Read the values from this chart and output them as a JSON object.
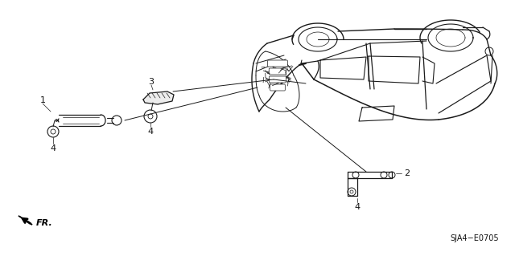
{
  "bg_color": "#ffffff",
  "fig_width": 6.4,
  "fig_height": 3.19,
  "dpi": 100,
  "diagram_code": "SJA4−E0705",
  "line_color": "#1a1a1a",
  "text_color": "#111111"
}
